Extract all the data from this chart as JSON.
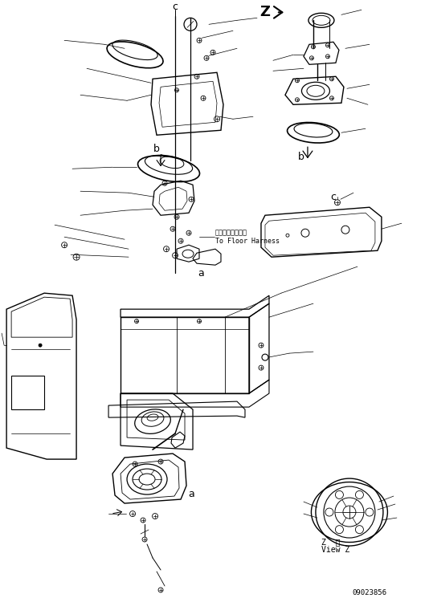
{
  "background_color": "#ffffff",
  "line_color": "#000000",
  "floor_harness_jp": "フロアハーネスへ",
  "floor_harness_en": "To Floor Harness",
  "part_number": "09023856",
  "figsize": [
    5.34,
    7.45
  ],
  "dpi": 100,
  "label_a": "a",
  "label_b": "b",
  "label_c": "c",
  "label_Z": "Z",
  "view_z_line1": "Z  視",
  "view_z_line2": "View Z"
}
